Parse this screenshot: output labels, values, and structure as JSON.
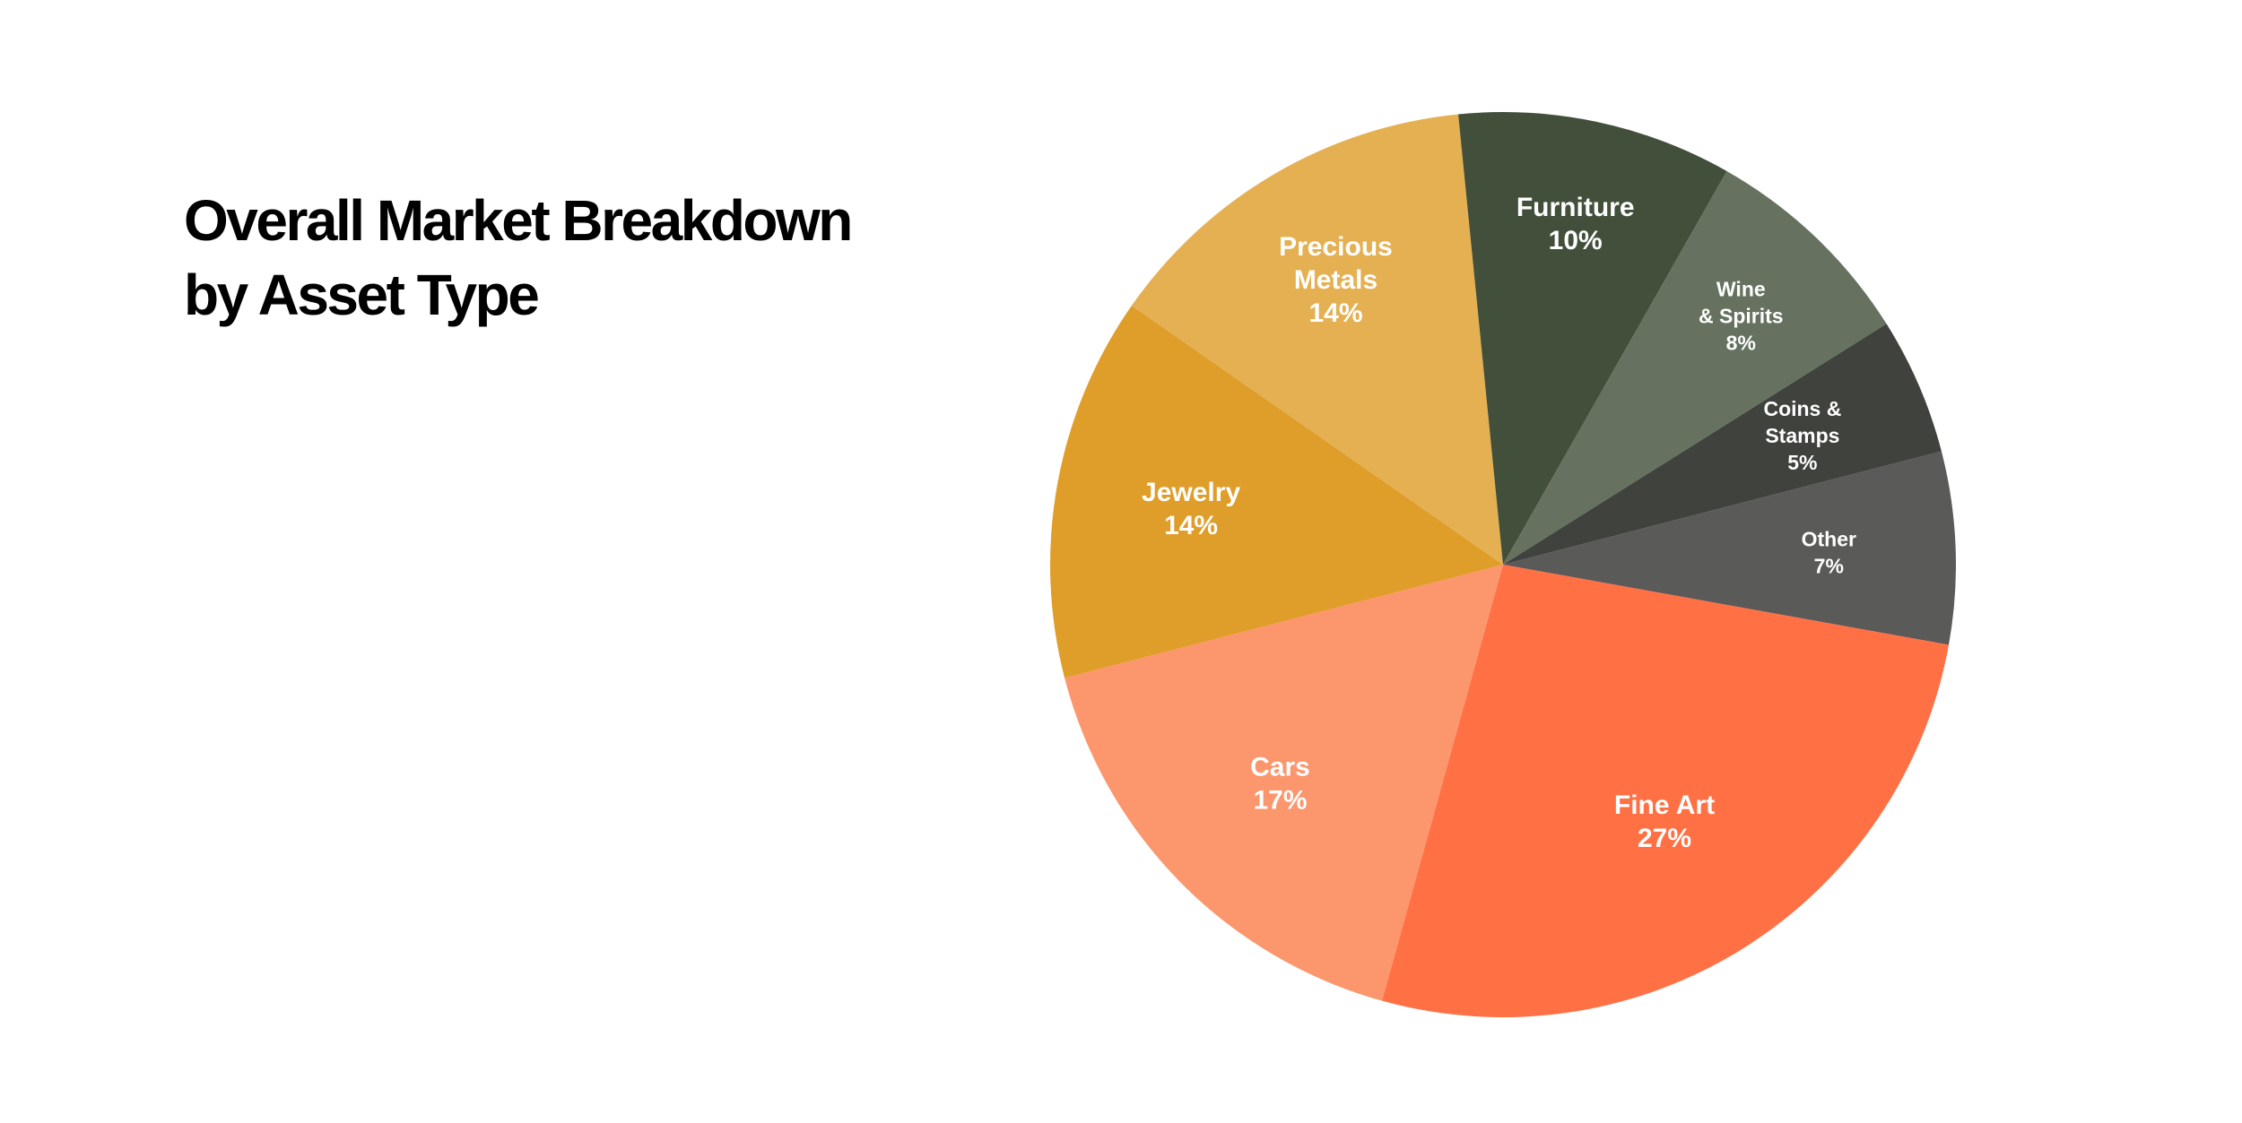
{
  "chart_data": {
    "type": "pie",
    "title_lines": [
      "Overall Market Breakdown",
      "by Asset Type"
    ],
    "legend": "none",
    "slices": [
      {
        "key": "jewelry",
        "label_lines": [
          "Jewelry"
        ],
        "value": 14,
        "value_label": "14%",
        "color": "#DF9D29"
      },
      {
        "key": "precious-metals",
        "label_lines": [
          "Precious",
          "Metals"
        ],
        "value": 14,
        "value_label": "14%",
        "color": "#E5B052"
      },
      {
        "key": "furniture",
        "label_lines": [
          "Furniture"
        ],
        "value": 10,
        "value_label": "10%",
        "color": "#414F3B"
      },
      {
        "key": "wine-spirits",
        "label_lines": [
          "Wine",
          "& Spirits"
        ],
        "value": 8,
        "value_label": "8%",
        "color": "#66725F"
      },
      {
        "key": "coins-stamps",
        "label_lines": [
          "Coins &",
          "Stamps"
        ],
        "value": 5,
        "value_label": "5%",
        "color": "#3F423D"
      },
      {
        "key": "other",
        "label_lines": [
          "Other"
        ],
        "value": 7,
        "value_label": "7%",
        "color": "#5A5A58"
      },
      {
        "key": "fine-art",
        "label_lines": [
          "Fine Art"
        ],
        "value": 27,
        "value_label": "27%",
        "color": "#FF7045"
      },
      {
        "key": "cars",
        "label_lines": [
          "Cars"
        ],
        "value": 17,
        "value_label": "17%",
        "color": "#FC966C"
      }
    ]
  }
}
